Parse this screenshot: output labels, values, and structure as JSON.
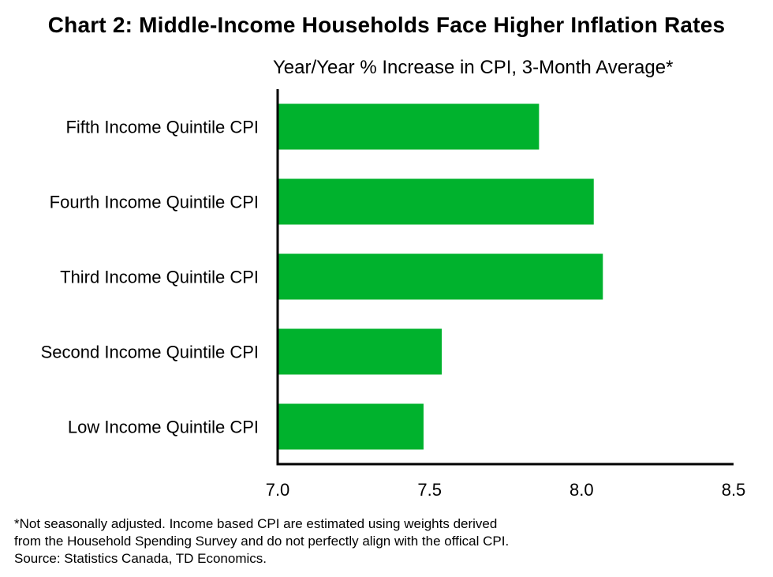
{
  "chart_data": {
    "type": "bar",
    "orientation": "horizontal",
    "title": "Chart 2: Middle-Income  Households  Face Higher Inflation Rates",
    "subtitle": "Year/Year % Increase in CPI, 3-Month Average*",
    "categories": [
      "Fifth Income Quintile CPI",
      "Fourth Income Quintile CPI",
      "Third Income Quintile CPI",
      "Second Income Quintile CPI",
      "Low Income Quintile CPI"
    ],
    "values": [
      7.86,
      8.04,
      8.07,
      7.54,
      7.48
    ],
    "xlim": [
      7.0,
      8.5
    ],
    "xticks": [
      "7.0",
      "7.5",
      "8.0",
      "8.5"
    ],
    "bar_color": "#00b22d",
    "grid": false,
    "legend": "none"
  },
  "notes": [
    "*Not  seasonally  adjusted.  Income  based  CPI  are  estimated  using  weights  derived",
    "from  the  Household   Spending   Survey  and  do  not  perfectly  align  with  the  offical  CPI.",
    "Source:  Statistics  Canada,  TD  Economics."
  ]
}
